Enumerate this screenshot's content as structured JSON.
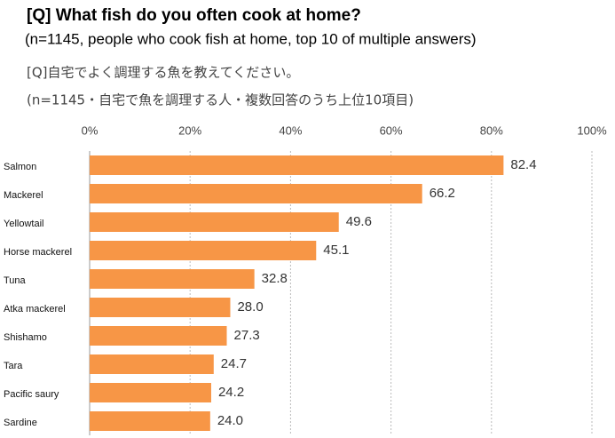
{
  "chart_data": {
    "type": "bar",
    "orientation": "horizontal",
    "title": "[Q] What fish do you often cook at home?",
    "subtitle": "(n=1145, people who cook fish at home, top 10 of multiple answers)",
    "original_title": "[Q]自宅でよく調理する魚を教えてください。",
    "original_subtitle": "(n=1145・自宅で魚を調理する人・複数回答のうち上位10項目)",
    "categories": [
      "Salmon",
      "Mackerel",
      "Yellowtail",
      "Horse mackerel",
      "Tuna",
      "Atka mackerel",
      "Shishamo",
      "Tara",
      "Pacific saury",
      "Sardine"
    ],
    "values": [
      82.4,
      66.2,
      49.6,
      45.1,
      32.8,
      28.0,
      27.3,
      24.7,
      24.2,
      24.0
    ],
    "value_labels": [
      "82.4",
      "66.2",
      "49.6",
      "45.1",
      "32.8",
      "28.0",
      "27.3",
      "24.7",
      "24.2",
      "24.0"
    ],
    "color": "#f79646",
    "xlim": [
      0,
      100
    ],
    "xticks": [
      {
        "value": 0,
        "label": "0%"
      },
      {
        "value": 20,
        "label": "20%"
      },
      {
        "value": 40,
        "label": "40%"
      },
      {
        "value": 60,
        "label": "60%"
      },
      {
        "value": 80,
        "label": "80%"
      },
      {
        "value": 100,
        "label": "100%"
      }
    ],
    "grid": true
  }
}
